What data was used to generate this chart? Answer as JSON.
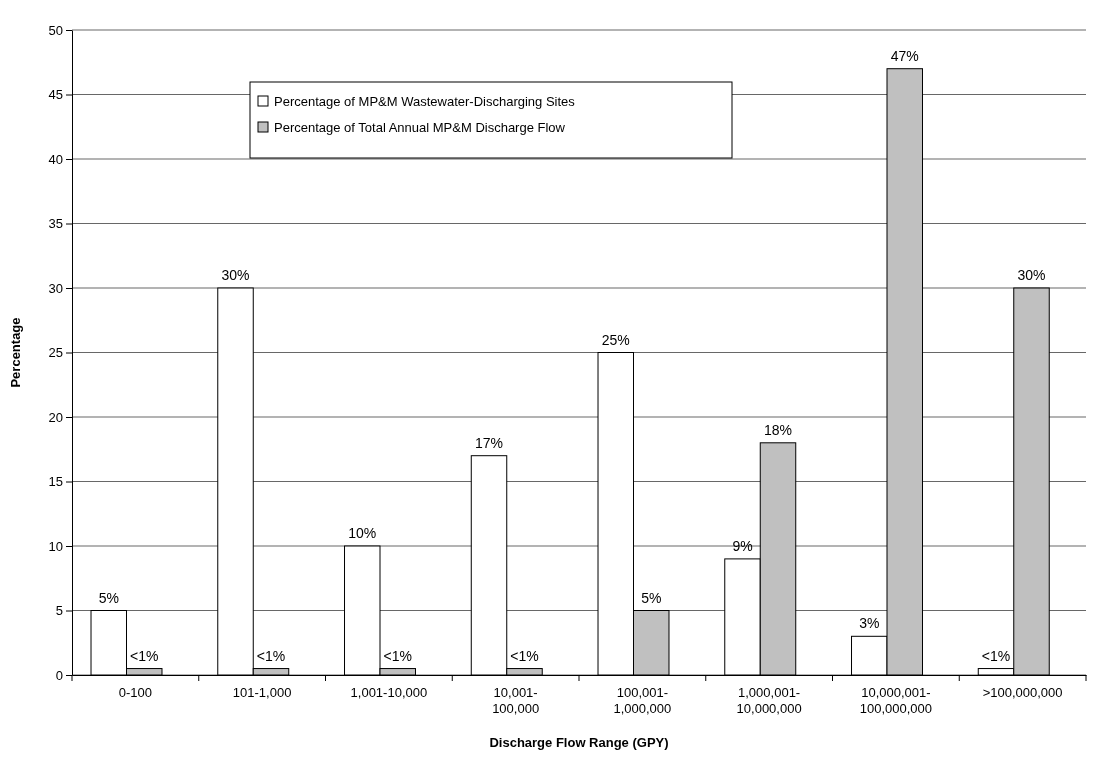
{
  "chart_data": {
    "type": "bar",
    "xlabel": "Discharge Flow Range (GPY)",
    "ylabel": "Percentage",
    "categories": [
      "0-100",
      "101-1,000",
      "1,001-10,000",
      "10,001-100,000",
      "100,001-1,000,000",
      "1,000,001-10,000,000",
      "10,000,001-100,000,000",
      ">100,000,000"
    ],
    "series": [
      {
        "name": "Percentage of MP&M Wastewater-Discharging Sites",
        "color": "#ffffff",
        "values": [
          5,
          30,
          10,
          17,
          25,
          9,
          3,
          0.5
        ],
        "value_labels": [
          "5%",
          "30%",
          "10%",
          "17%",
          "25%",
          "9%",
          "3%",
          "<1%"
        ]
      },
      {
        "name": "Percentage of Total Annual MP&M Discharge Flow",
        "color": "#c0c0c0",
        "values": [
          0.5,
          0.5,
          0.5,
          0.5,
          5,
          18,
          47,
          30
        ],
        "value_labels": [
          "<1%",
          "<1%",
          "<1%",
          "<1%",
          "5%",
          "18%",
          "47%",
          "30%"
        ]
      }
    ],
    "ylim": [
      0,
      50
    ],
    "yticks": [
      0,
      5,
      10,
      15,
      20,
      25,
      30,
      35,
      40,
      45,
      50
    ],
    "grid": "y",
    "legend": "top"
  }
}
